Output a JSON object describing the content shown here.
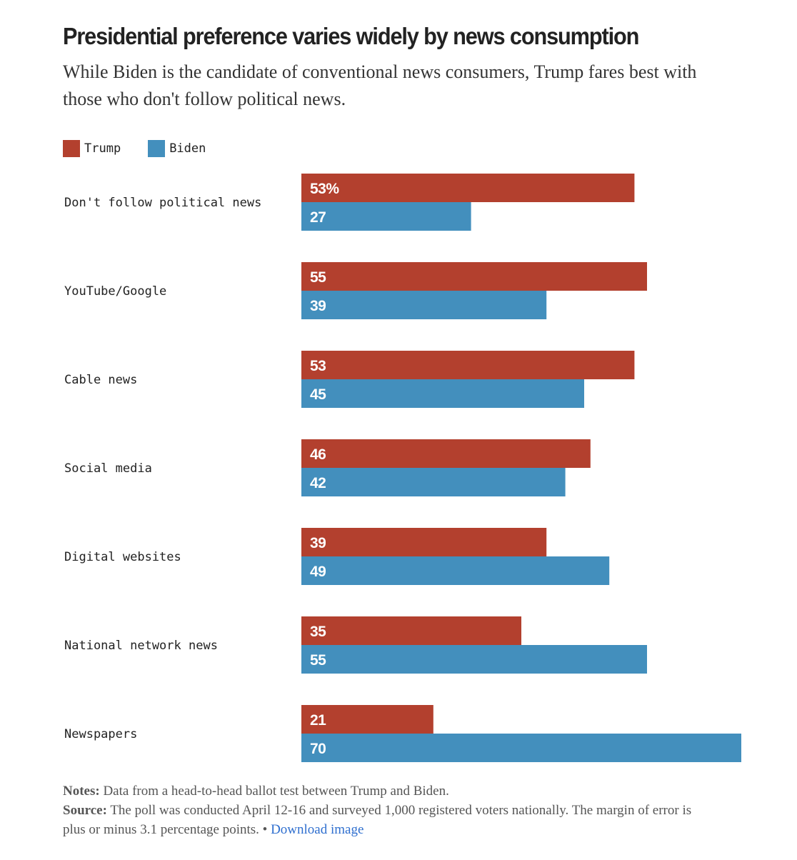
{
  "title": "Presidential preference varies widely by news consumption",
  "subtitle": "While Biden is the candidate of conventional news consumers, Trump fares best with those who don't follow political news.",
  "legend": [
    {
      "label": "Trump",
      "color": "#b3402e"
    },
    {
      "label": "Biden",
      "color": "#438fbd"
    }
  ],
  "chart_data": {
    "type": "bar",
    "orientation": "horizontal",
    "categories": [
      "Don't follow political news",
      "YouTube/Google",
      "Cable news",
      "Social media",
      "Digital websites",
      "National network news",
      "Newspapers"
    ],
    "series": [
      {
        "name": "Trump",
        "color": "#b3402e",
        "values": [
          53,
          55,
          53,
          46,
          39,
          35,
          21
        ],
        "labels": [
          "53%",
          "55",
          "53",
          "46",
          "39",
          "35",
          "21"
        ]
      },
      {
        "name": "Biden",
        "color": "#438fbd",
        "values": [
          27,
          39,
          45,
          42,
          49,
          55,
          70
        ],
        "labels": [
          "27",
          "39",
          "45",
          "42",
          "49",
          "55",
          "70"
        ]
      }
    ],
    "xlim": [
      0,
      70
    ],
    "grid": false,
    "legend_position": "top-left"
  },
  "notes": {
    "notes_label": "Notes:",
    "notes_text": " Data from a head-to-head ballot test between Trump and Biden.",
    "source_label": "Source:",
    "source_text": " The poll was conducted April 12-16 and surveyed 1,000 registered voters nationally. The margin of error is plus or minus 3.1 percentage points. • ",
    "download_link": "Download image"
  }
}
